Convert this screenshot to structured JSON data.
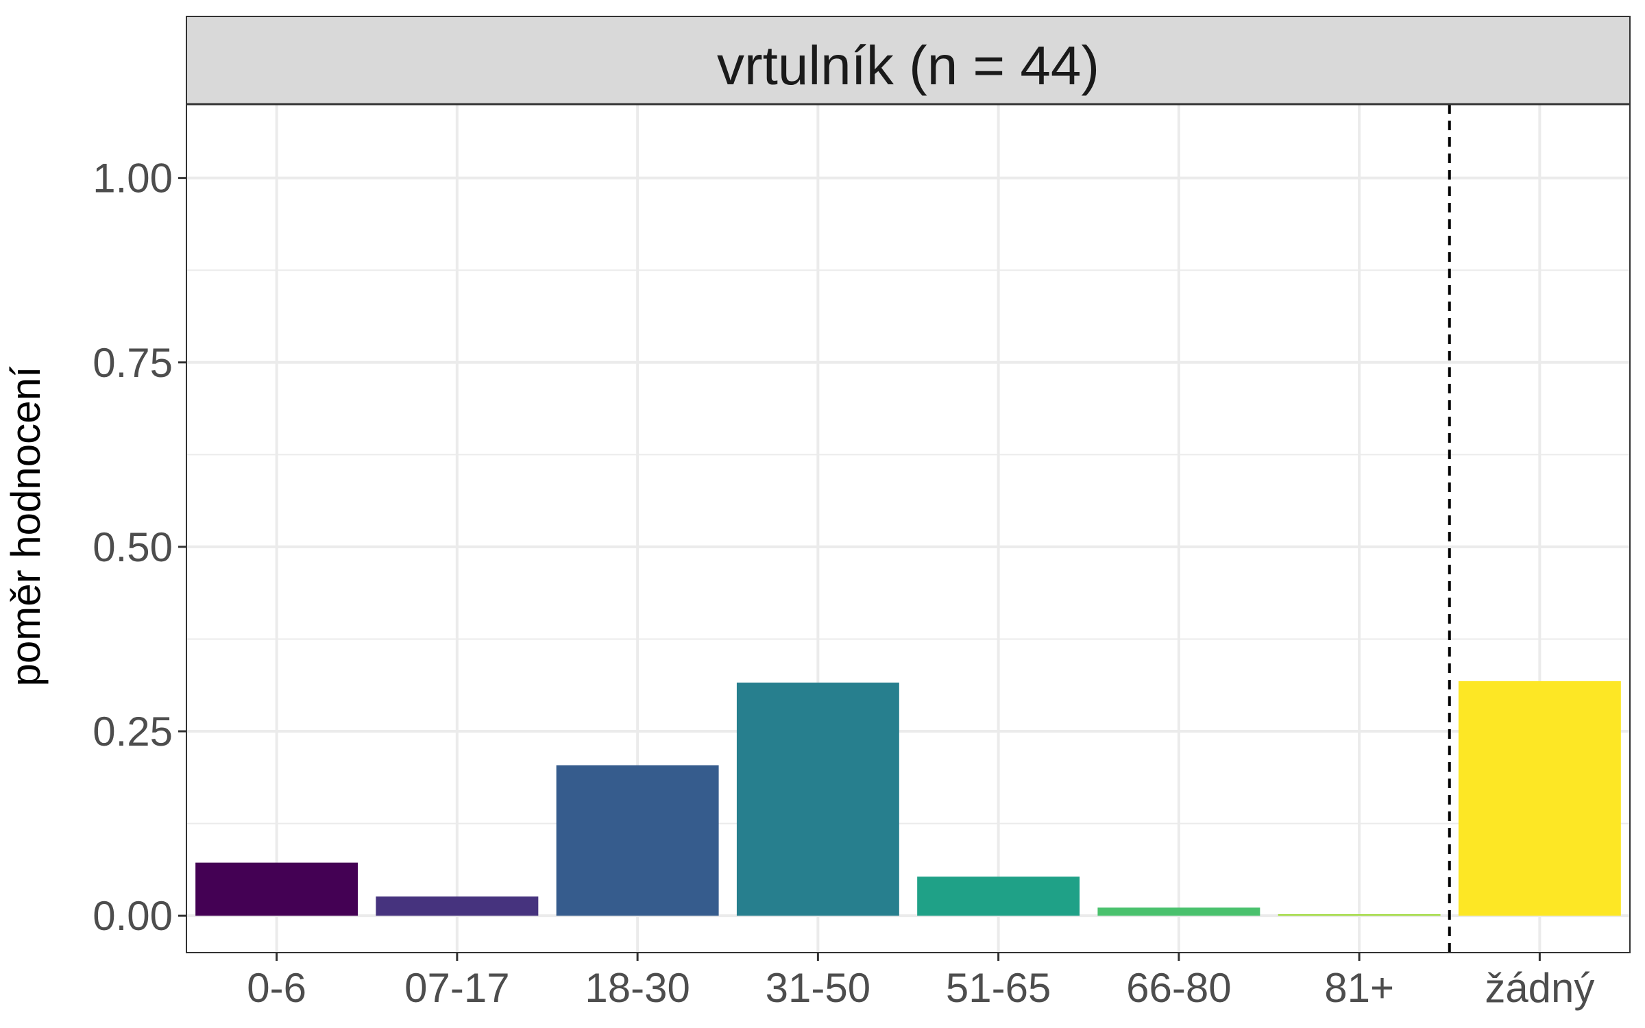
{
  "chart_data": {
    "type": "bar",
    "title": "vrtulník (n = 44)",
    "xlabel": "",
    "ylabel": "poměr hodnocení",
    "categories": [
      "0-6",
      "07-17",
      "18-30",
      "31-50",
      "51-65",
      "66-80",
      "81+",
      "žádný"
    ],
    "values": [
      0.072,
      0.026,
      0.204,
      0.316,
      0.053,
      0.011,
      0.002,
      0.318
    ],
    "ylim": [
      -0.05,
      1.1
    ],
    "yticks": [
      0,
      0.25,
      0.5,
      0.75,
      1
    ],
    "ytick_labels": [
      "0.00",
      "0.25",
      "0.50",
      "0.75",
      "1.00"
    ],
    "bar_colors": [
      "#440154",
      "#46337E",
      "#365C8D",
      "#277F8E",
      "#1FA187",
      "#4AC16D",
      "#9FDA3A",
      "#FDE725"
    ],
    "separator": {
      "style": "dashed",
      "between": [
        "81+",
        "žádný"
      ]
    },
    "grid": true,
    "legend": "none"
  }
}
